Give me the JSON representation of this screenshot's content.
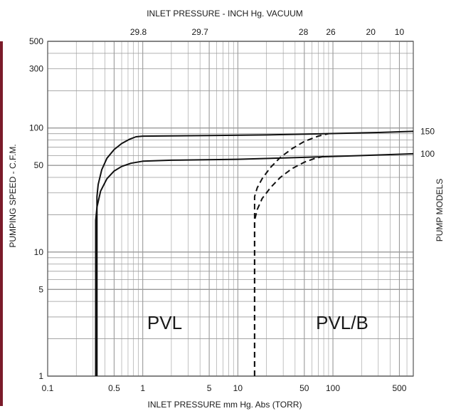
{
  "chart_data": {
    "type": "line",
    "top_axis_title": "INLET PRESSURE - INCH Hg. VACUUM",
    "xlabel": "INLET PRESSURE mm Hg. Abs (TORR)",
    "ylabel": "PUMPING SPEED - C.F.M.",
    "right_label": "PUMP MODELS",
    "x_scale": "log",
    "y_scale": "log",
    "xlim": [
      0.1,
      700
    ],
    "ylim": [
      1,
      500
    ],
    "grid": true,
    "x_ticks": [
      {
        "value": 0.1,
        "label": "0.1"
      },
      {
        "value": 0.5,
        "label": "0.5"
      },
      {
        "value": 1,
        "label": "1"
      },
      {
        "value": 5,
        "label": "5"
      },
      {
        "value": 10,
        "label": "10"
      },
      {
        "value": 50,
        "label": "50"
      },
      {
        "value": 100,
        "label": "100"
      },
      {
        "value": 500,
        "label": "500"
      }
    ],
    "y_ticks": [
      {
        "value": 1,
        "label": "1"
      },
      {
        "value": 5,
        "label": "5"
      },
      {
        "value": 10,
        "label": "10"
      },
      {
        "value": 50,
        "label": "50"
      },
      {
        "value": 100,
        "label": "100"
      },
      {
        "value": 300,
        "label": "300"
      },
      {
        "value": 500,
        "label": "500"
      }
    ],
    "top_ticks": [
      {
        "label": "29.8",
        "at_torr": 0.9
      },
      {
        "label": "29.7",
        "at_torr": 4.0
      },
      {
        "label": "28",
        "at_torr": 49
      },
      {
        "label": "26",
        "at_torr": 95
      },
      {
        "label": "20",
        "at_torr": 250
      },
      {
        "label": "10",
        "at_torr": 500
      }
    ],
    "region_labels": [
      {
        "text": "PVL",
        "x": 1.7,
        "y": 2.4
      },
      {
        "text": "PVL/B",
        "x": 125,
        "y": 2.4
      }
    ],
    "series": [
      {
        "name": "150",
        "group": "PVL",
        "style": "solid",
        "x": [
          0.33,
          0.33,
          0.34,
          0.37,
          0.42,
          0.5,
          0.6,
          0.72,
          0.85,
          1.0,
          2,
          5,
          20,
          80,
          300,
          700
        ],
        "y": [
          1,
          28,
          35,
          46,
          57,
          67,
          75,
          81,
          85,
          86,
          86.5,
          87,
          88,
          90,
          92,
          94
        ]
      },
      {
        "name": "100",
        "group": "PVL",
        "style": "solid",
        "x": [
          0.32,
          0.32,
          0.33,
          0.36,
          0.42,
          0.5,
          0.6,
          0.75,
          1.0,
          2,
          10,
          50,
          200,
          700
        ],
        "y": [
          1,
          18,
          23,
          31,
          39,
          45,
          49,
          52,
          54,
          55,
          56,
          58,
          60,
          62
        ]
      },
      {
        "name": "150",
        "group": "PVL/B",
        "style": "dashed",
        "x": [
          15,
          15,
          16,
          18,
          22,
          28,
          37,
          50,
          70,
          90
        ],
        "y": [
          1,
          28,
          33,
          39,
          48,
          58,
          68,
          78,
          86,
          90
        ]
      },
      {
        "name": "100",
        "group": "PVL/B",
        "style": "dashed",
        "x": [
          15,
          15,
          16,
          18,
          22,
          28,
          37,
          50,
          65,
          80
        ],
        "y": [
          1,
          18,
          22,
          27,
          33,
          40,
          47,
          53,
          57,
          59
        ]
      }
    ],
    "colors": {
      "grid": "#9a9a9a",
      "axis": "#555555",
      "line": "#111111",
      "side_bar": "#7b1b2a"
    }
  }
}
